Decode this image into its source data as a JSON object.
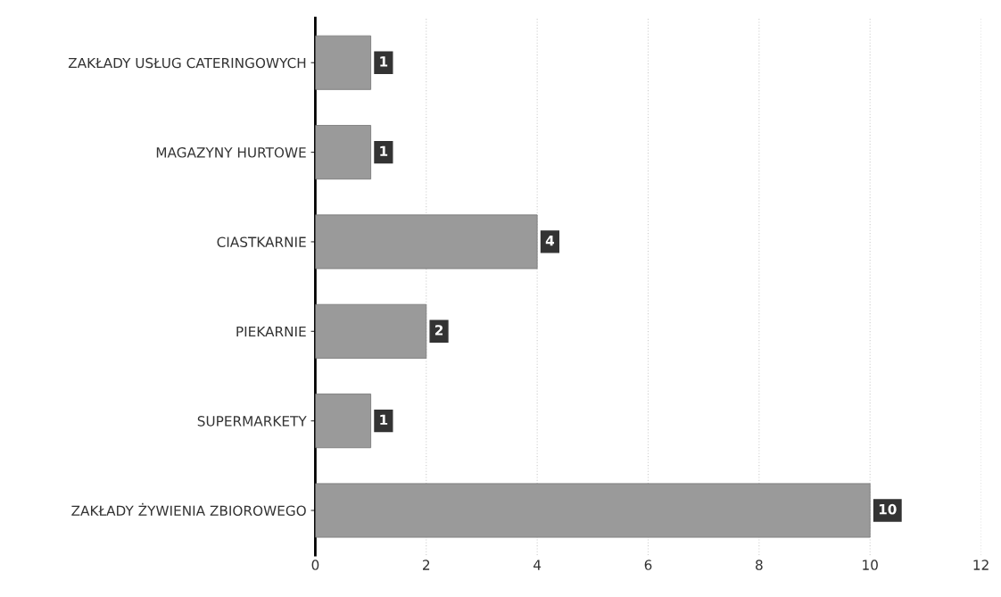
{
  "chart_data": {
    "type": "bar",
    "orientation": "horizontal",
    "categories": [
      "ZAKŁADY USŁUG CATERINGOWYCH",
      "MAGAZYNY HURTOWE",
      "CIASTKARNIE",
      "PIEKARNIE",
      "SUPERMARKETY",
      "ZAKŁADY ŻYWIENIA ZBIOROWEGO"
    ],
    "values": [
      1,
      1,
      4,
      2,
      1,
      10
    ],
    "color": "#9a9a9a",
    "xlim": [
      0,
      12
    ],
    "xticks": [
      0,
      2,
      4,
      6,
      8,
      10,
      12
    ],
    "grid": "x",
    "data_labels": true
  }
}
